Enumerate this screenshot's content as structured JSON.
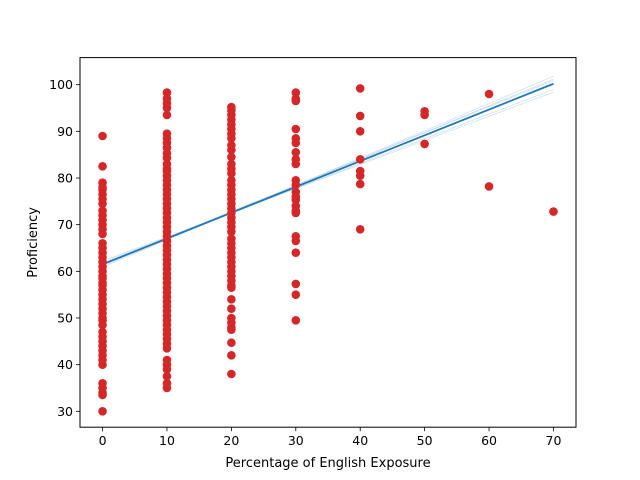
{
  "chart_data": {
    "type": "scatter",
    "title": "",
    "xlabel": "Percentage of English Exposure",
    "ylabel": "Proficiency",
    "xlim": [
      -3.5,
      73.5
    ],
    "ylim": [
      26.6,
      105.8
    ],
    "xticks": [
      0,
      10,
      20,
      30,
      40,
      50,
      60,
      70
    ],
    "yticks": [
      30,
      40,
      50,
      60,
      70,
      80,
      90,
      100
    ],
    "grid": false,
    "legend": "none",
    "point_color": "#d62728",
    "line_color": "#1f77b4",
    "band_color": "#a6c8e6",
    "points": {
      "x0": [
        89,
        82.5,
        79,
        78,
        77.5,
        76.5,
        75.5,
        74.5,
        73,
        72,
        71,
        70,
        69,
        68,
        66,
        65,
        64,
        63,
        62,
        61,
        60,
        59,
        58.5,
        57.5,
        57,
        56,
        55,
        54,
        53,
        52,
        51,
        50,
        49.5,
        48.5,
        47,
        46,
        45,
        44,
        43,
        42,
        41,
        40,
        36,
        35,
        34,
        33.5,
        30
      ],
      "x10": [
        98.3,
        97,
        96,
        95,
        93.5,
        89.5,
        88.5,
        87.5,
        86.5,
        85.3,
        84.3,
        83,
        82,
        81.5,
        80.5,
        79.5,
        78.5,
        77.5,
        76.5,
        75.5,
        74.5,
        73.5,
        72.5,
        71.5,
        70.5,
        69.5,
        68.5,
        67.5,
        66.5,
        65.5,
        64.5,
        63.5,
        62.5,
        61.5,
        60.5,
        59.5,
        58.5,
        57.5,
        56.5,
        55.5,
        54.5,
        53.5,
        52.5,
        51.5,
        50.5,
        49.5,
        48.5,
        47.5,
        46.5,
        45.5,
        44.5,
        43.5,
        41,
        40,
        39,
        37.5,
        36,
        35
      ],
      "x20": [
        95.2,
        94.5,
        93.5,
        92.5,
        91.5,
        90.5,
        89.5,
        88.5,
        87,
        86,
        84.5,
        83,
        82,
        81,
        79.5,
        78.5,
        77.5,
        76.5,
        75.5,
        74.5,
        73.5,
        72.5,
        71.5,
        70.5,
        69.5,
        68.5,
        67,
        66,
        65,
        64,
        63,
        62,
        61,
        60,
        59,
        58,
        57,
        56.5,
        54,
        52,
        50,
        49,
        48,
        47.5,
        44.7,
        42,
        38
      ],
      "x30": [
        98.3,
        97,
        96.5,
        90.5,
        88.5,
        87.5,
        85.5,
        84,
        83,
        79.5,
        78.5,
        77,
        76,
        75.3,
        74,
        73,
        72.5,
        67.5,
        66.5,
        64,
        57.3,
        55,
        49.5
      ],
      "x40": [
        99.2,
        93.3,
        90,
        84,
        81.5,
        80.5,
        78.7,
        69
      ],
      "x50": [
        94.3,
        93.5,
        87.3
      ],
      "x60": [
        98,
        78.2
      ],
      "x70": [
        72.8
      ]
    },
    "fit_line": {
      "x": [
        0,
        70
      ],
      "y": [
        61.5,
        100.2
      ]
    },
    "bootstrap_lines": [
      {
        "x": [
          0,
          70
        ],
        "y": [
          61.2,
          101.2
        ]
      },
      {
        "x": [
          0,
          70
        ],
        "y": [
          61.9,
          99.0
        ]
      },
      {
        "x": [
          0,
          70
        ],
        "y": [
          60.9,
          101.8
        ]
      },
      {
        "x": [
          0,
          70
        ],
        "y": [
          62.2,
          98.4
        ]
      },
      {
        "x": [
          0,
          70
        ],
        "y": [
          61.6,
          100.9
        ]
      }
    ]
  }
}
